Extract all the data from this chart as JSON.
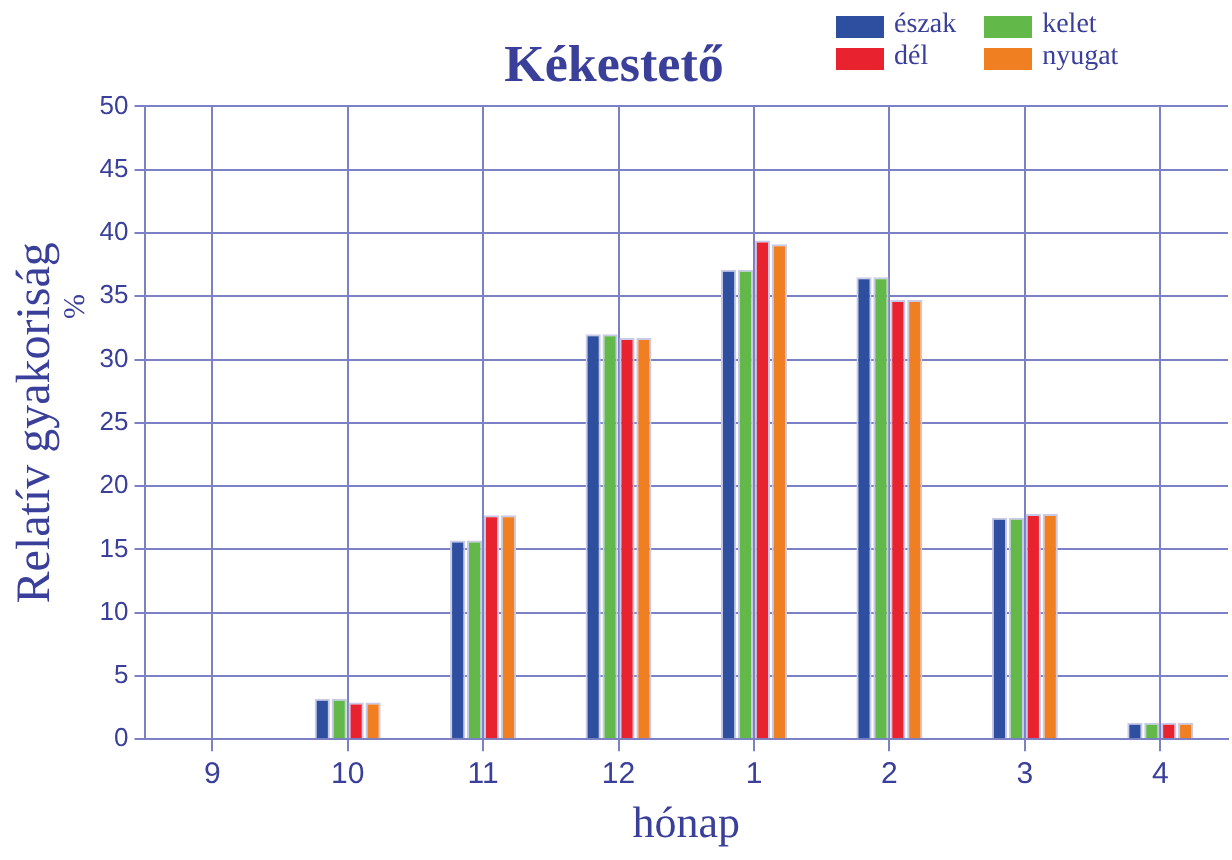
{
  "chart_data": {
    "type": "bar",
    "title": "Kékestető",
    "xlabel": "hónap",
    "ylabel": "Relatív gyakoriság",
    "annotations": [
      "%"
    ],
    "categories": [
      "9",
      "10",
      "11",
      "12",
      "1",
      "2",
      "3",
      "4"
    ],
    "series": [
      {
        "name": "észak",
        "color": "#2e4fa0",
        "values": [
          0,
          3.2,
          15.7,
          32.0,
          37.1,
          36.5,
          17.5,
          1.3
        ]
      },
      {
        "name": "kelet",
        "color": "#62b94a",
        "values": [
          0,
          3.2,
          15.7,
          32.0,
          37.1,
          36.5,
          17.5,
          1.3
        ]
      },
      {
        "name": "dél",
        "color": "#e8222e",
        "values": [
          0,
          2.9,
          17.7,
          31.7,
          39.4,
          34.7,
          17.8,
          1.3
        ]
      },
      {
        "name": "nyugat",
        "color": "#f07f22",
        "values": [
          0,
          2.9,
          17.7,
          31.7,
          39.1,
          34.7,
          17.8,
          1.3
        ]
      }
    ],
    "ylim": [
      0,
      50
    ],
    "yticks": [
      0,
      5,
      10,
      15,
      20,
      25,
      30,
      35,
      40,
      45,
      50
    ],
    "grid": true,
    "legend": "top right"
  }
}
